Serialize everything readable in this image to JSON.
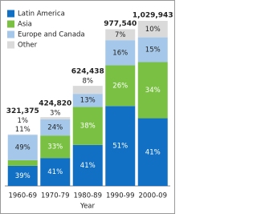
{
  "chart_data": {
    "type": "stacked-bar",
    "x_label": "Year",
    "categories": [
      "1960-69",
      "1970-79",
      "1980-89",
      "1990-99",
      "2000-09"
    ],
    "totals": {
      "values": [
        321375,
        424820,
        624438,
        977540,
        1029943
      ],
      "value_labels": [
        "321,375",
        "424,820",
        "624,438",
        "977,540",
        "1,029,943"
      ]
    },
    "series": [
      {
        "name": "Latin America",
        "color": "#1170c4",
        "label_color": "#ffffff",
        "values": [
          39,
          41,
          41,
          51,
          41
        ],
        "value_labels": [
          "39%",
          "41%",
          "41%",
          "51%",
          "41%"
        ]
      },
      {
        "name": "Asia",
        "color": "#7ac143",
        "label_color": "#ffffff",
        "values": [
          11,
          33,
          38,
          26,
          34
        ],
        "value_labels": [
          "11%",
          "33%",
          "38%",
          "26%",
          "34%"
        ]
      },
      {
        "name": "Europe and Canada",
        "color": "#a5c8ea",
        "label_color": "#222222",
        "values": [
          49,
          24,
          13,
          16,
          15
        ],
        "value_labels": [
          "49%",
          "24%",
          "13%",
          "16%",
          "15%"
        ]
      },
      {
        "name": "Other",
        "color": "#dadada",
        "label_color": "#222222",
        "values": [
          1,
          3,
          8,
          7,
          10
        ],
        "value_labels": [
          "1%",
          "3%",
          "8%",
          "7%",
          "10%"
        ]
      }
    ],
    "legend": "top-left"
  }
}
